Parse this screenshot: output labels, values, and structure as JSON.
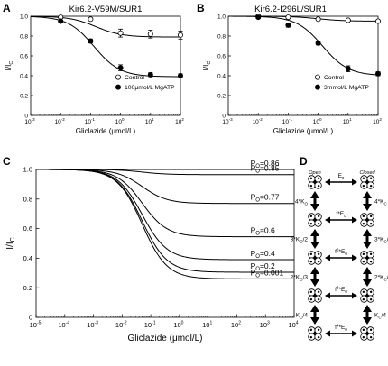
{
  "chart_data": [
    {
      "panel": "A",
      "type": "line",
      "title": "Kir6.2-V59M/SUR1",
      "xlabel": "Gliclazide (μmol/L)",
      "ylabel": "I/I",
      "ylabel_sub": "C",
      "xscale": "log",
      "xlim": [
        0.001,
        100
      ],
      "ylim": [
        0,
        1.0
      ],
      "xticks": [
        "10",
        "10",
        "10",
        "10",
        "10",
        "10"
      ],
      "xtick_exps": [
        "-3",
        "-2",
        "-1",
        "0",
        "1",
        "2"
      ],
      "yticks": [
        "0",
        "0.2",
        "0.4",
        "0.6",
        "0.8",
        "1.0"
      ],
      "legend": {
        "position": "center-right",
        "entries": [
          "Control",
          "100μmol/L MgATP"
        ]
      },
      "series": [
        {
          "name": "Control",
          "marker": "open-circle",
          "x": [
            0.01,
            0.1,
            1,
            10,
            100
          ],
          "y": [
            0.99,
            0.97,
            0.83,
            0.82,
            0.81
          ],
          "yerr": [
            0.01,
            0.01,
            0.04,
            0.04,
            0.04
          ],
          "fit": {
            "top": 1.0,
            "bottom": 0.79,
            "ic50": 0.15,
            "hill": 1.0
          }
        },
        {
          "name": "100μmol/L MgATP",
          "marker": "filled-circle",
          "x": [
            0.01,
            0.1,
            1,
            10,
            100
          ],
          "y": [
            0.95,
            0.75,
            0.48,
            0.41,
            0.4
          ],
          "yerr": [
            0.01,
            0.02,
            0.03,
            0.02,
            0.02
          ],
          "fit": {
            "top": 1.0,
            "bottom": 0.39,
            "ic50": 0.13,
            "hill": 1.0
          }
        }
      ]
    },
    {
      "panel": "B",
      "type": "line",
      "title": "Kir6.2-I296L/SUR1",
      "xlabel": "Gliclazide (μmol/L)",
      "ylabel": "I/I",
      "ylabel_sub": "C",
      "xscale": "log",
      "xlim": [
        0.001,
        100
      ],
      "ylim": [
        0,
        1.0
      ],
      "xticks": [
        "10",
        "10",
        "10",
        "10",
        "10",
        "10"
      ],
      "xtick_exps": [
        "-3",
        "-2",
        "-1",
        "0",
        "1",
        "2"
      ],
      "yticks": [
        "0",
        "0.2",
        "0.4",
        "0.6",
        "0.8",
        "1.0"
      ],
      "legend": {
        "position": "center-right",
        "entries": [
          "Control",
          "3mmol/L MgATP"
        ]
      },
      "series": [
        {
          "name": "Control",
          "marker": "open-circle",
          "x": [
            0.01,
            0.1,
            1,
            10,
            100
          ],
          "y": [
            1.0,
            0.99,
            0.97,
            0.96,
            0.95
          ],
          "yerr": [
            0.01,
            0.01,
            0.01,
            0.01,
            0.01
          ],
          "fit": {
            "top": 1.0,
            "bottom": 0.95,
            "ic50": 1.0,
            "hill": 1.0
          }
        },
        {
          "name": "3mmol/L MgATP",
          "marker": "filled-circle",
          "x": [
            0.01,
            0.1,
            1,
            10,
            100
          ],
          "y": [
            0.99,
            0.91,
            0.73,
            0.47,
            0.42
          ],
          "yerr": [
            0.01,
            0.02,
            0.02,
            0.03,
            0.02
          ],
          "fit": {
            "top": 1.0,
            "bottom": 0.4,
            "ic50": 1.4,
            "hill": 1.0
          }
        }
      ]
    },
    {
      "panel": "C",
      "type": "line",
      "xlabel": "Gliclazide (μmol/L)",
      "ylabel": "I/I",
      "ylabel_sub": "C",
      "xscale": "log",
      "xlim": [
        1e-05,
        10000
      ],
      "ylim": [
        0,
        1.0
      ],
      "xticks": [
        "10",
        "10",
        "10",
        "10",
        "10",
        "10",
        "10",
        "10",
        "10",
        "10"
      ],
      "xtick_exps": [
        "-5",
        "-4",
        "-3",
        "-2",
        "-1",
        "0",
        "1",
        "2",
        "3",
        "4"
      ],
      "yticks": [
        "0",
        "0.2",
        "0.4",
        "0.6",
        "0.8",
        "1.0"
      ],
      "po_prefix": "P",
      "po_sub": "O",
      "series": [
        {
          "label": "=0.86",
          "bottom": 1.0
        },
        {
          "label": "=0.85",
          "bottom": 0.965
        },
        {
          "label": "=0.77",
          "bottom": 0.77
        },
        {
          "label": "=0.6",
          "bottom": 0.545
        },
        {
          "label": "=0.4",
          "bottom": 0.39
        },
        {
          "label": "=0.2",
          "bottom": 0.305
        },
        {
          "label": "=0.001",
          "bottom": 0.26
        }
      ],
      "fit": {
        "ic50": 0.05,
        "hill": 1.0
      }
    }
  ],
  "panel_labels": {
    "a": "A",
    "b": "B",
    "c": "C",
    "d": "D"
  },
  "diagram": {
    "top_left": "Open",
    "top_right": "Closed",
    "horizontal_labels": [
      {
        "main": "E",
        "sub": "0"
      },
      {
        "main": "f*E",
        "sub": "0"
      },
      {
        "main": "f",
        "sup": "2",
        "rest": "*E",
        "sub": "0"
      },
      {
        "main": "f",
        "sup": "3",
        "rest": "*E",
        "sub": "0"
      },
      {
        "main": "f",
        "sup": "4",
        "rest": "*E",
        "sub": "0"
      }
    ],
    "left_labels": [
      {
        "pre": "4*K",
        "sub": "O",
        "post": ""
      },
      {
        "pre": "3*K",
        "sub": "O",
        "post": "/2"
      },
      {
        "pre": "2*K",
        "sub": "O",
        "post": "/3"
      },
      {
        "pre": "K",
        "sub": "O",
        "post": "/4"
      }
    ],
    "right_labels": [
      {
        "pre": "4*K",
        "sub": "C",
        "post": ""
      },
      {
        "pre": "3*K",
        "sub": "C",
        "post": "/2"
      },
      {
        "pre": "2*K",
        "sub": "C",
        "post": "/3"
      },
      {
        "pre": "K",
        "sub": "C",
        "post": "/4"
      }
    ]
  }
}
